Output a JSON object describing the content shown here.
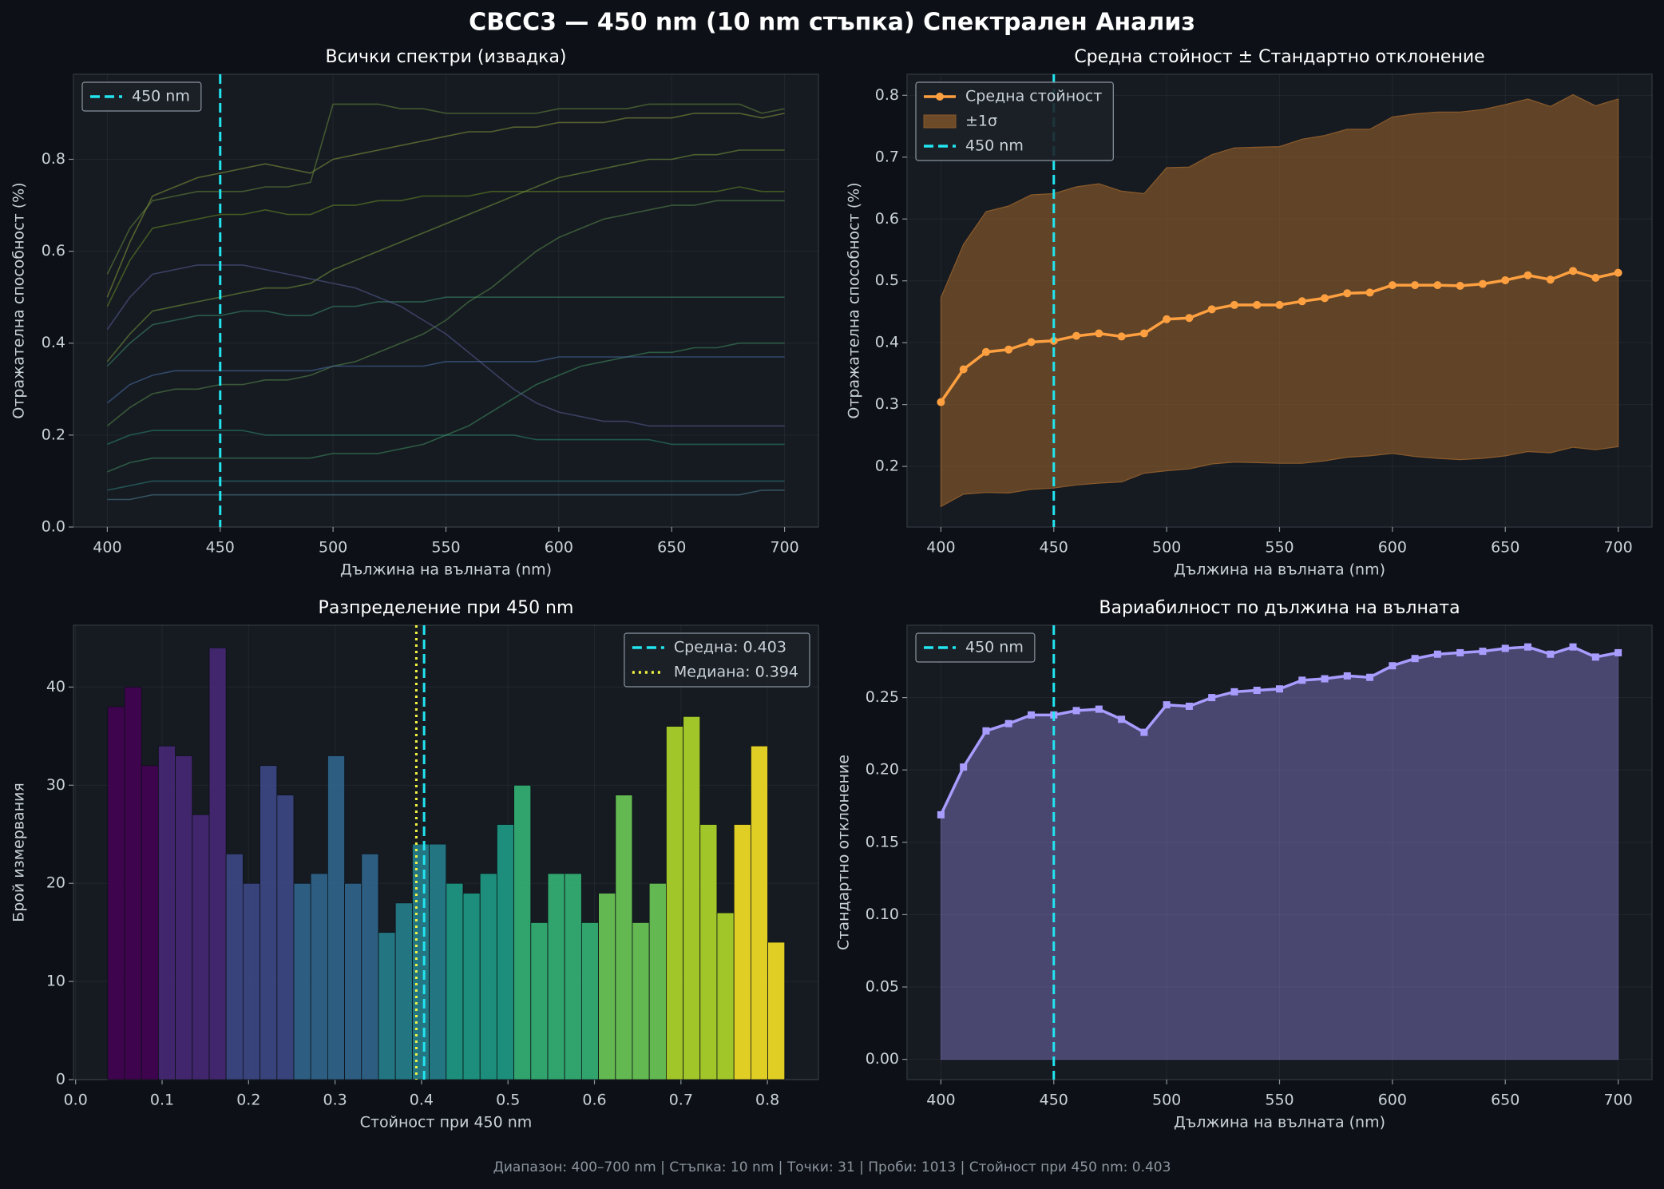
{
  "title": "CBCC3 — 450 nm (10 nm стъпка) Спектрален Анализ",
  "footer": "Диапазон: 400–700 nm  |  Стъпка: 10 nm  |  Точки: 31  |  Проби: 1013  |  Стойност при 450 nm: 0.403",
  "chart_data": [
    {
      "type": "line",
      "title": "Всички спектри (извадка)",
      "x_label": "Дължина на вълната (nm)",
      "y_label": "Отражателна способност (%)",
      "x": [
        400,
        410,
        420,
        430,
        440,
        450,
        460,
        470,
        480,
        490,
        500,
        510,
        520,
        530,
        540,
        550,
        560,
        570,
        580,
        590,
        600,
        610,
        620,
        630,
        640,
        650,
        660,
        670,
        680,
        690,
        700
      ],
      "series": [
        {
          "color": "#8a9a3b",
          "values": [
            0.5,
            0.62,
            0.72,
            0.74,
            0.76,
            0.77,
            0.78,
            0.79,
            0.78,
            0.77,
            0.8,
            0.81,
            0.82,
            0.83,
            0.84,
            0.85,
            0.86,
            0.86,
            0.87,
            0.87,
            0.88,
            0.88,
            0.88,
            0.89,
            0.89,
            0.89,
            0.9,
            0.9,
            0.9,
            0.89,
            0.9
          ]
        },
        {
          "color": "#6b8e23",
          "values": [
            0.48,
            0.58,
            0.65,
            0.66,
            0.67,
            0.68,
            0.68,
            0.69,
            0.68,
            0.68,
            0.7,
            0.7,
            0.71,
            0.71,
            0.72,
            0.72,
            0.72,
            0.73,
            0.73,
            0.73,
            0.73,
            0.73,
            0.73,
            0.73,
            0.73,
            0.73,
            0.73,
            0.73,
            0.74,
            0.73,
            0.73
          ]
        },
        {
          "color": "#7c9a3a",
          "values": [
            0.36,
            0.42,
            0.47,
            0.48,
            0.49,
            0.5,
            0.51,
            0.52,
            0.52,
            0.53,
            0.56,
            0.58,
            0.6,
            0.62,
            0.64,
            0.66,
            0.68,
            0.7,
            0.72,
            0.74,
            0.76,
            0.77,
            0.78,
            0.79,
            0.8,
            0.8,
            0.81,
            0.81,
            0.82,
            0.82,
            0.82
          ]
        },
        {
          "color": "#3e8e6e",
          "values": [
            0.35,
            0.4,
            0.44,
            0.45,
            0.46,
            0.46,
            0.47,
            0.47,
            0.46,
            0.46,
            0.48,
            0.48,
            0.49,
            0.49,
            0.49,
            0.5,
            0.5,
            0.5,
            0.5,
            0.5,
            0.5,
            0.5,
            0.5,
            0.5,
            0.5,
            0.5,
            0.5,
            0.5,
            0.5,
            0.5,
            0.5
          ]
        },
        {
          "color": "#5a8d4a",
          "values": [
            0.22,
            0.26,
            0.29,
            0.3,
            0.3,
            0.31,
            0.31,
            0.32,
            0.32,
            0.33,
            0.35,
            0.36,
            0.38,
            0.4,
            0.42,
            0.45,
            0.49,
            0.52,
            0.56,
            0.6,
            0.63,
            0.65,
            0.67,
            0.68,
            0.69,
            0.7,
            0.7,
            0.71,
            0.71,
            0.71,
            0.71
          ]
        },
        {
          "color": "#2e8b77",
          "values": [
            0.18,
            0.2,
            0.21,
            0.21,
            0.21,
            0.21,
            0.21,
            0.2,
            0.2,
            0.2,
            0.2,
            0.2,
            0.2,
            0.2,
            0.2,
            0.2,
            0.2,
            0.2,
            0.2,
            0.19,
            0.19,
            0.19,
            0.19,
            0.19,
            0.19,
            0.18,
            0.18,
            0.18,
            0.18,
            0.18,
            0.18
          ]
        },
        {
          "color": "#3f8f5f",
          "values": [
            0.12,
            0.14,
            0.15,
            0.15,
            0.15,
            0.15,
            0.15,
            0.15,
            0.15,
            0.15,
            0.16,
            0.16,
            0.16,
            0.17,
            0.18,
            0.2,
            0.22,
            0.25,
            0.28,
            0.31,
            0.33,
            0.35,
            0.36,
            0.37,
            0.38,
            0.38,
            0.39,
            0.39,
            0.4,
            0.4,
            0.4
          ]
        },
        {
          "color": "#2f7f7a",
          "values": [
            0.08,
            0.09,
            0.1,
            0.1,
            0.1,
            0.1,
            0.1,
            0.1,
            0.1,
            0.1,
            0.1,
            0.1,
            0.1,
            0.1,
            0.1,
            0.1,
            0.1,
            0.1,
            0.1,
            0.1,
            0.1,
            0.1,
            0.1,
            0.1,
            0.1,
            0.1,
            0.1,
            0.1,
            0.1,
            0.1,
            0.1
          ]
        },
        {
          "color": "#4f7f8f",
          "values": [
            0.06,
            0.06,
            0.07,
            0.07,
            0.07,
            0.07,
            0.07,
            0.07,
            0.07,
            0.07,
            0.07,
            0.07,
            0.07,
            0.07,
            0.07,
            0.07,
            0.07,
            0.07,
            0.07,
            0.07,
            0.07,
            0.07,
            0.07,
            0.07,
            0.07,
            0.07,
            0.07,
            0.07,
            0.07,
            0.08,
            0.08
          ]
        },
        {
          "color": "#5b5f97",
          "values": [
            0.43,
            0.5,
            0.55,
            0.56,
            0.57,
            0.57,
            0.57,
            0.56,
            0.55,
            0.54,
            0.53,
            0.52,
            0.5,
            0.48,
            0.45,
            0.42,
            0.38,
            0.34,
            0.3,
            0.27,
            0.25,
            0.24,
            0.23,
            0.23,
            0.22,
            0.22,
            0.22,
            0.22,
            0.22,
            0.22,
            0.22
          ]
        },
        {
          "color": "#4a6fa5",
          "values": [
            0.27,
            0.31,
            0.33,
            0.34,
            0.34,
            0.34,
            0.34,
            0.34,
            0.34,
            0.34,
            0.35,
            0.35,
            0.35,
            0.35,
            0.35,
            0.36,
            0.36,
            0.36,
            0.36,
            0.36,
            0.37,
            0.37,
            0.37,
            0.37,
            0.37,
            0.37,
            0.37,
            0.37,
            0.37,
            0.37,
            0.37
          ]
        },
        {
          "color": "#6a8a3a",
          "values": [
            0.55,
            0.65,
            0.71,
            0.72,
            0.73,
            0.73,
            0.73,
            0.74,
            0.74,
            0.75,
            0.92,
            0.92,
            0.92,
            0.91,
            0.91,
            0.9,
            0.9,
            0.9,
            0.9,
            0.9,
            0.91,
            0.91,
            0.91,
            0.91,
            0.92,
            0.92,
            0.92,
            0.92,
            0.92,
            0.9,
            0.91
          ]
        }
      ],
      "xlim": [
        385,
        715
      ],
      "ylim": [
        0,
        0.985
      ],
      "xticks": [
        400,
        450,
        500,
        550,
        600,
        650,
        700
      ],
      "yticks": [
        {
          "value": 0,
          "label": "0.0"
        },
        0.2,
        0.4,
        0.6,
        0.8
      ],
      "vlines": [
        {
          "value": 450,
          "label": "450 nm",
          "color": "#22e5f0",
          "style": "dashed"
        }
      ],
      "legend": "upper left",
      "grid": true
    },
    {
      "type": "line",
      "title": "Средна стойност ± Стандартно отклонение",
      "x_label": "Дължина на вълната (nm)",
      "y_label": "Отражателна способност (%)",
      "x": [
        400,
        410,
        420,
        430,
        440,
        450,
        460,
        470,
        480,
        490,
        500,
        510,
        520,
        530,
        540,
        550,
        560,
        570,
        580,
        590,
        600,
        610,
        620,
        630,
        640,
        650,
        660,
        670,
        680,
        690,
        700
      ],
      "series": [
        {
          "name": "Средна стойност",
          "color": "#ffa040",
          "marker": "circle",
          "values": [
            0.304,
            0.357,
            0.385,
            0.389,
            0.401,
            0.403,
            0.411,
            0.415,
            0.41,
            0.415,
            0.438,
            0.44,
            0.454,
            0.461,
            0.461,
            0.461,
            0.467,
            0.472,
            0.48,
            0.481,
            0.493,
            0.493,
            0.493,
            0.492,
            0.495,
            0.501,
            0.509,
            0.502,
            0.516,
            0.505,
            0.513
          ]
        }
      ],
      "band": {
        "name": "±1σ",
        "color": "#8a5a2b",
        "lower": [
          0.135,
          0.155,
          0.158,
          0.157,
          0.163,
          0.165,
          0.17,
          0.173,
          0.175,
          0.189,
          0.193,
          0.196,
          0.204,
          0.207,
          0.206,
          0.205,
          0.205,
          0.209,
          0.215,
          0.217,
          0.221,
          0.216,
          0.213,
          0.211,
          0.213,
          0.217,
          0.224,
          0.222,
          0.231,
          0.227,
          0.232
        ],
        "upper": [
          0.473,
          0.559,
          0.612,
          0.621,
          0.639,
          0.641,
          0.652,
          0.657,
          0.645,
          0.641,
          0.683,
          0.684,
          0.704,
          0.715,
          0.716,
          0.717,
          0.729,
          0.735,
          0.745,
          0.745,
          0.765,
          0.77,
          0.773,
          0.773,
          0.777,
          0.785,
          0.794,
          0.782,
          0.801,
          0.783,
          0.794
        ]
      },
      "xlim": [
        385,
        715
      ],
      "ylim": [
        0.102,
        0.834
      ],
      "xticks": [
        400,
        450,
        500,
        550,
        600,
        650,
        700
      ],
      "yticks": [
        0.2,
        0.3,
        0.4,
        0.5,
        0.6,
        0.7,
        0.8
      ],
      "vlines": [
        {
          "value": 450,
          "label": "450 nm",
          "color": "#22e5f0",
          "style": "dashed"
        }
      ],
      "legend": "upper left",
      "grid": true
    },
    {
      "type": "histogram",
      "title": "Разпределение при 450 nm",
      "x_label": "Стойност при 450 nm",
      "y_label": "Брой измервания",
      "bins": [
        0.037,
        0.0566,
        0.0762,
        0.0957,
        0.1153,
        0.1349,
        0.1545,
        0.174,
        0.1936,
        0.2132,
        0.2328,
        0.2523,
        0.2719,
        0.2915,
        0.3111,
        0.3306,
        0.3502,
        0.3698,
        0.3894,
        0.4089,
        0.4285,
        0.4481,
        0.4677,
        0.4872,
        0.5068,
        0.5264,
        0.546,
        0.5655,
        0.5851,
        0.6047,
        0.6243,
        0.6438,
        0.6634,
        0.683,
        0.7026,
        0.7221,
        0.7417,
        0.7613,
        0.7809,
        0.8004,
        0.82
      ],
      "counts": [
        38,
        40,
        32,
        34,
        33,
        27,
        44,
        23,
        20,
        32,
        29,
        20,
        21,
        33,
        20,
        23,
        15,
        18,
        24,
        24,
        20,
        19,
        21,
        26,
        30,
        16,
        21,
        21,
        16,
        19,
        29,
        16,
        20,
        36,
        37,
        26,
        17,
        26,
        34,
        14
      ],
      "colormap": "viridis",
      "xlim": [
        -0.0025,
        0.859
      ],
      "ylim": [
        0,
        46.3
      ],
      "xticks": [
        {
          "value": 0,
          "label": "0.0"
        },
        0.1,
        0.2,
        0.3,
        0.4,
        0.5,
        0.6,
        0.7,
        0.8
      ],
      "yticks": [
        0,
        10,
        20,
        30,
        40
      ],
      "vlines": [
        {
          "value": 0.403,
          "label": "Средна: 0.403",
          "color": "#22e5f0",
          "style": "dashed"
        },
        {
          "value": 0.394,
          "label": "Медиана: 0.394",
          "color": "#f5f542",
          "style": "dotted"
        }
      ],
      "legend": "upper right",
      "grid": true
    },
    {
      "type": "area",
      "title": "Вариабилност по дължина на вълната",
      "x_label": "Дължина на вълната (nm)",
      "y_label": "Стандартно отклонение",
      "x": [
        400,
        410,
        420,
        430,
        440,
        450,
        460,
        470,
        480,
        490,
        500,
        510,
        520,
        530,
        540,
        550,
        560,
        570,
        580,
        590,
        600,
        610,
        620,
        630,
        640,
        650,
        660,
        670,
        680,
        690,
        700
      ],
      "series": [
        {
          "color": "#a99cff",
          "marker": "square",
          "values": [
            0.169,
            0.202,
            0.227,
            0.232,
            0.238,
            0.238,
            0.241,
            0.242,
            0.235,
            0.226,
            0.245,
            0.244,
            0.25,
            0.254,
            0.255,
            0.256,
            0.262,
            0.263,
            0.265,
            0.264,
            0.272,
            0.277,
            0.28,
            0.281,
            0.282,
            0.284,
            0.285,
            0.28,
            0.285,
            0.278,
            0.281
          ]
        }
      ],
      "xlim": [
        385,
        715
      ],
      "ylim": [
        -0.014,
        0.3
      ],
      "xticks": [
        400,
        450,
        500,
        550,
        600,
        650,
        700
      ],
      "yticks": [
        {
          "value": 0,
          "label": "0.00"
        },
        0.05,
        {
          "value": 0.1,
          "label": "0.10"
        },
        0.15,
        {
          "value": 0.2,
          "label": "0.20"
        },
        0.25
      ],
      "vlines": [
        {
          "value": 450,
          "label": "450 nm",
          "color": "#22e5f0",
          "style": "dashed"
        }
      ],
      "legend": "upper left",
      "grid": true
    }
  ]
}
